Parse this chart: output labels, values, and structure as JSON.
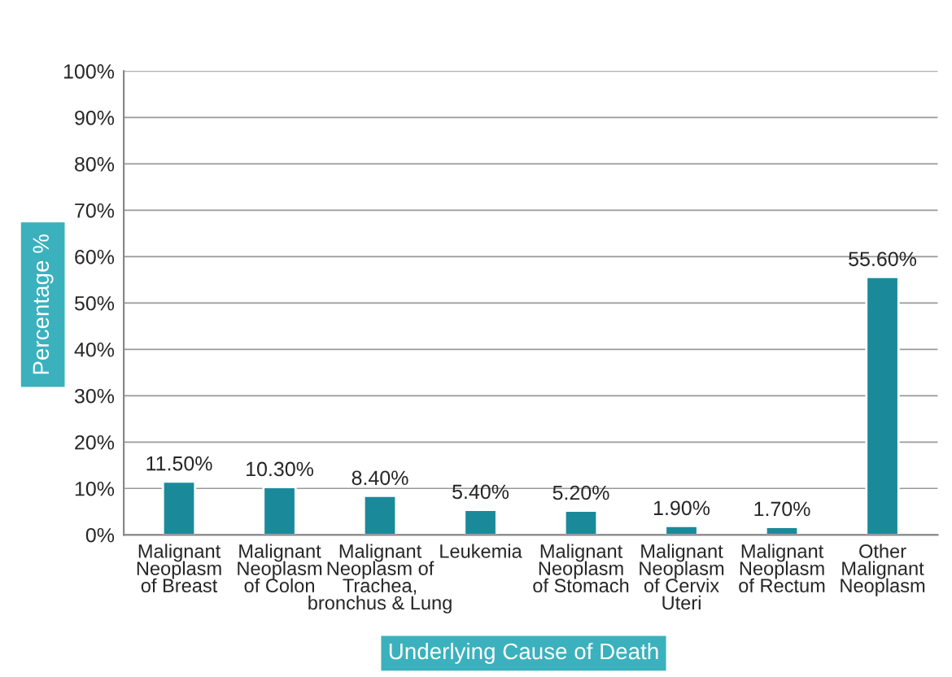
{
  "chart_data": {
    "type": "bar",
    "xlabel": "Underlying Cause of Death",
    "ylabel": "Percentage %",
    "categories": [
      "Malignant\nNeoplasm\nof Breast",
      "Malignant\nNeoplasm\nof Colon",
      "Malignant\nNeoplasm of\nTrachea,\nbronchus & Lung",
      "Leukemia",
      "Malignant\nNeoplasm\nof Stomach",
      "Malignant\nNeoplasm\nof Cervix\nUteri",
      "Malignant\nNeoplasm\nof Rectum",
      "Other\nMalignant\nNeoplasm"
    ],
    "values": [
      11.5,
      10.3,
      8.4,
      5.4,
      5.2,
      1.9,
      1.7,
      55.6
    ],
    "value_labels": [
      "11.50%",
      "10.30%",
      "8.40%",
      "5.40%",
      "5.20%",
      "1.90%",
      "1.70%",
      "55.60%"
    ],
    "color": "#1a8a9b",
    "ylim": [
      0,
      100
    ],
    "yticks": [
      {
        "value": 0,
        "label": "0%"
      },
      {
        "value": 10,
        "label": "10%"
      },
      {
        "value": 20,
        "label": "20%"
      },
      {
        "value": 30,
        "label": "30%"
      },
      {
        "value": 40,
        "label": "40%"
      },
      {
        "value": 50,
        "label": "50%"
      },
      {
        "value": 60,
        "label": "60%"
      },
      {
        "value": 70,
        "label": "70%"
      },
      {
        "value": 80,
        "label": "80%"
      },
      {
        "value": 90,
        "label": "90%"
      },
      {
        "value": 100,
        "label": "100%"
      }
    ],
    "grid": "y",
    "legend": false
  }
}
